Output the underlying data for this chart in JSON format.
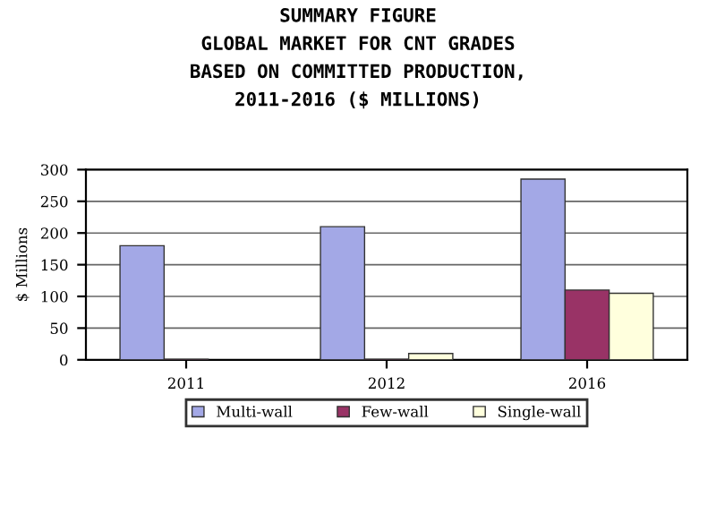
{
  "chart_data": {
    "type": "bar",
    "title": "SUMMARY FIGURE\nGLOBAL MARKET FOR CNT GRADES\nBASED ON COMMITTED PRODUCTION,\n2011-2016 ($ MILLIONS)",
    "ylabel": "$ Millions",
    "categories": [
      "2011",
      "2012",
      "2016"
    ],
    "series": [
      {
        "name": "Multi-wall",
        "color": "#a3a8e6",
        "values": [
          180,
          210,
          285
        ]
      },
      {
        "name": "Few-wall",
        "color": "#993366",
        "values": [
          1,
          1,
          110
        ]
      },
      {
        "name": "Single-wall",
        "color": "#ffffdd",
        "values": [
          null,
          10,
          105
        ]
      }
    ],
    "ylim": [
      0,
      300
    ],
    "yticks": [
      0,
      50,
      100,
      150,
      200,
      250,
      300
    ],
    "grid": "y",
    "legend": "bottom"
  }
}
